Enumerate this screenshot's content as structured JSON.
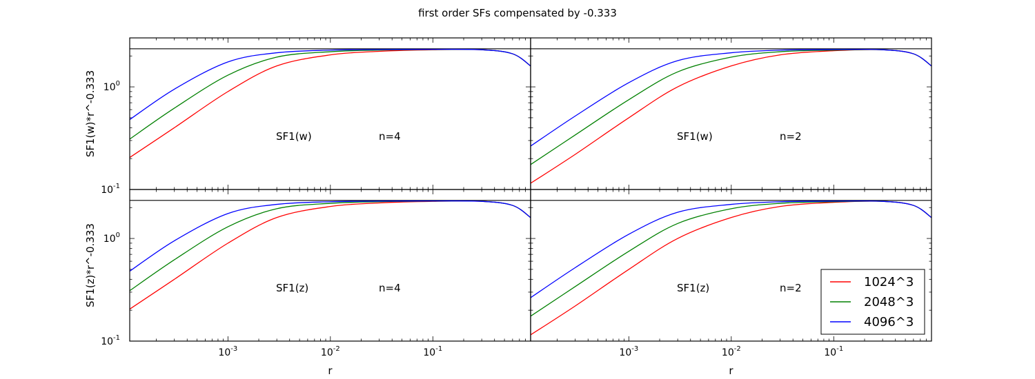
{
  "figure": {
    "title": "first order SFs compensated by -0.333"
  },
  "chart_data": [
    {
      "type": "line",
      "panel": "top-left",
      "xscale": "log",
      "yscale": "log",
      "xlim": [
        0.00011,
        0.9
      ],
      "ylim": [
        0.1,
        3.0
      ],
      "ylabel": "SF1(w)*r^-0.333",
      "xlabel": "",
      "xticks": [
        "10^-3",
        "10^-2",
        "10^-1"
      ],
      "yticks": [
        "10^-1",
        "10^0"
      ],
      "annotations": [
        "SF1(w)",
        "n=4"
      ],
      "reference_line_y": 2.35,
      "series": [
        {
          "name": "1024^3",
          "color": "#ff0000",
          "x": [
            0.00011,
            0.0003,
            0.001,
            0.003,
            0.01,
            0.03,
            0.1,
            0.3,
            0.6,
            0.9
          ],
          "y": [
            0.205,
            0.4,
            0.9,
            1.6,
            2.05,
            2.22,
            2.3,
            2.3,
            2.1,
            1.6
          ]
        },
        {
          "name": "2048^3",
          "color": "#008000",
          "x": [
            0.00011,
            0.0003,
            0.001,
            0.003,
            0.01,
            0.03,
            0.1,
            0.3,
            0.6,
            0.9
          ],
          "y": [
            0.31,
            0.62,
            1.3,
            1.95,
            2.2,
            2.28,
            2.31,
            2.3,
            2.1,
            1.6
          ]
        },
        {
          "name": "4096^3",
          "color": "#0000ff",
          "x": [
            0.00011,
            0.0003,
            0.001,
            0.003,
            0.01,
            0.03,
            0.1,
            0.3,
            0.6,
            0.9
          ],
          "y": [
            0.48,
            0.95,
            1.75,
            2.15,
            2.28,
            2.31,
            2.32,
            2.3,
            2.1,
            1.6
          ]
        }
      ]
    },
    {
      "type": "line",
      "panel": "top-right",
      "xscale": "log",
      "yscale": "log",
      "xlim": [
        0.00011,
        0.9
      ],
      "ylim": [
        0.1,
        3.0
      ],
      "ylabel": "",
      "xlabel": "",
      "xticks": [
        "10^-3",
        "10^-2",
        "10^-1"
      ],
      "yticks": [],
      "annotations": [
        "SF1(w)",
        "n=2"
      ],
      "reference_line_y": 2.35,
      "series": [
        {
          "name": "1024^3",
          "color": "#ff0000",
          "x": [
            0.00011,
            0.0003,
            0.001,
            0.003,
            0.01,
            0.03,
            0.1,
            0.3,
            0.6,
            0.9
          ],
          "y": [
            0.115,
            0.22,
            0.5,
            1.0,
            1.6,
            2.05,
            2.25,
            2.3,
            2.1,
            1.6
          ]
        },
        {
          "name": "2048^3",
          "color": "#008000",
          "x": [
            0.00011,
            0.0003,
            0.001,
            0.003,
            0.01,
            0.03,
            0.1,
            0.3,
            0.6,
            0.9
          ],
          "y": [
            0.175,
            0.34,
            0.75,
            1.4,
            1.95,
            2.2,
            2.28,
            2.3,
            2.1,
            1.6
          ]
        },
        {
          "name": "4096^3",
          "color": "#0000ff",
          "x": [
            0.00011,
            0.0003,
            0.001,
            0.003,
            0.01,
            0.03,
            0.1,
            0.3,
            0.6,
            0.9
          ],
          "y": [
            0.265,
            0.52,
            1.1,
            1.8,
            2.15,
            2.28,
            2.31,
            2.3,
            2.1,
            1.6
          ]
        }
      ]
    },
    {
      "type": "line",
      "panel": "bottom-left",
      "xscale": "log",
      "yscale": "log",
      "xlim": [
        0.00011,
        0.9
      ],
      "ylim": [
        0.1,
        3.0
      ],
      "ylabel": "SF1(z)*r^-0.333",
      "xlabel": "r",
      "xticks": [
        "10^-3",
        "10^-2",
        "10^-1"
      ],
      "yticks": [
        "10^-1",
        "10^0"
      ],
      "annotations": [
        "SF1(z)",
        "n=4"
      ],
      "reference_line_y": 2.35,
      "series": [
        {
          "name": "1024^3",
          "color": "#ff0000",
          "x": [
            0.00011,
            0.0003,
            0.001,
            0.003,
            0.01,
            0.03,
            0.1,
            0.3,
            0.6,
            0.9
          ],
          "y": [
            0.205,
            0.4,
            0.9,
            1.6,
            2.05,
            2.22,
            2.3,
            2.3,
            2.1,
            1.6
          ]
        },
        {
          "name": "2048^3",
          "color": "#008000",
          "x": [
            0.00011,
            0.0003,
            0.001,
            0.003,
            0.01,
            0.03,
            0.1,
            0.3,
            0.6,
            0.9
          ],
          "y": [
            0.31,
            0.62,
            1.3,
            1.95,
            2.2,
            2.28,
            2.31,
            2.3,
            2.1,
            1.6
          ]
        },
        {
          "name": "4096^3",
          "color": "#0000ff",
          "x": [
            0.00011,
            0.0003,
            0.001,
            0.003,
            0.01,
            0.03,
            0.1,
            0.3,
            0.6,
            0.9
          ],
          "y": [
            0.48,
            0.95,
            1.75,
            2.15,
            2.28,
            2.31,
            2.32,
            2.3,
            2.1,
            1.6
          ]
        }
      ]
    },
    {
      "type": "line",
      "panel": "bottom-right",
      "xscale": "log",
      "yscale": "log",
      "xlim": [
        0.00011,
        0.9
      ],
      "ylim": [
        0.1,
        3.0
      ],
      "ylabel": "",
      "xlabel": "r",
      "xticks": [
        "10^-3",
        "10^-2",
        "10^-1"
      ],
      "yticks": [],
      "annotations": [
        "SF1(z)",
        "n=2"
      ],
      "reference_line_y": 2.35,
      "legend": "lower-right",
      "series": [
        {
          "name": "1024^3",
          "color": "#ff0000",
          "x": [
            0.00011,
            0.0003,
            0.001,
            0.003,
            0.01,
            0.03,
            0.1,
            0.3,
            0.6,
            0.9
          ],
          "y": [
            0.115,
            0.22,
            0.5,
            1.0,
            1.6,
            2.05,
            2.25,
            2.3,
            2.1,
            1.6
          ]
        },
        {
          "name": "2048^3",
          "color": "#008000",
          "x": [
            0.00011,
            0.0003,
            0.001,
            0.003,
            0.01,
            0.03,
            0.1,
            0.3,
            0.6,
            0.9
          ],
          "y": [
            0.175,
            0.34,
            0.75,
            1.4,
            1.95,
            2.2,
            2.28,
            2.3,
            2.1,
            1.6
          ]
        },
        {
          "name": "4096^3",
          "color": "#0000ff",
          "x": [
            0.00011,
            0.0003,
            0.001,
            0.003,
            0.01,
            0.03,
            0.1,
            0.3,
            0.6,
            0.9
          ],
          "y": [
            0.265,
            0.52,
            1.1,
            1.8,
            2.15,
            2.28,
            2.31,
            2.3,
            2.1,
            1.6
          ]
        }
      ]
    }
  ]
}
